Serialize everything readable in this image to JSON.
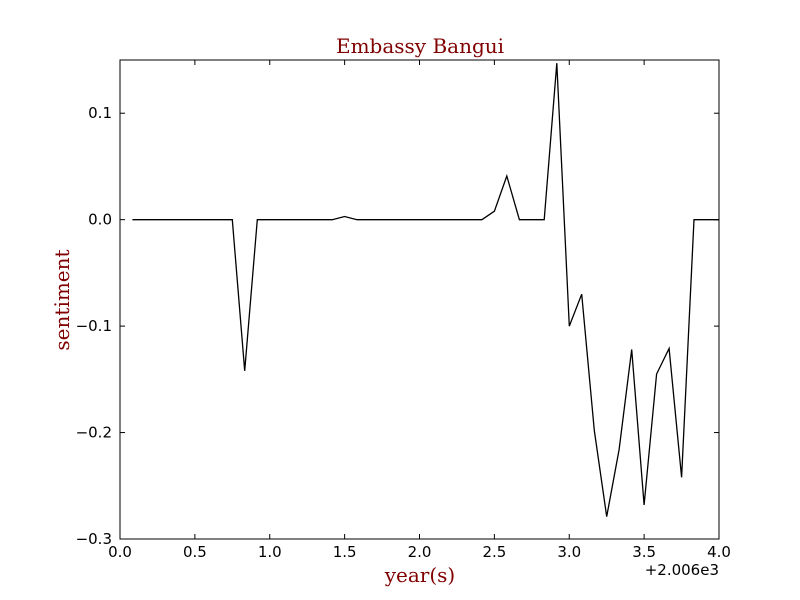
{
  "chart_data": {
    "type": "line",
    "title": "Embassy Bangui",
    "xlabel": "year(s)",
    "ylabel": "sentiment",
    "x_offset_label": "+2.006e3",
    "xlim": [
      0.0,
      4.0
    ],
    "ylim": [
      -0.3,
      0.15
    ],
    "x_ticks": [
      0.0,
      0.5,
      1.0,
      1.5,
      2.0,
      2.5,
      3.0,
      3.5,
      4.0
    ],
    "x_tick_labels": [
      "0.0",
      "0.5",
      "1.0",
      "1.5",
      "2.0",
      "2.5",
      "3.0",
      "3.5",
      "4.0"
    ],
    "y_ticks": [
      -0.3,
      -0.2,
      -0.1,
      0.0,
      0.1
    ],
    "y_tick_labels": [
      "−0.3",
      "−0.2",
      "−0.1",
      "0.0",
      "0.1"
    ],
    "grid": false,
    "colors": {
      "line": "#000000",
      "text": "#800000"
    },
    "series": [
      {
        "x": [
          0.083,
          0.167,
          0.25,
          0.333,
          0.417,
          0.5,
          0.583,
          0.667,
          0.75,
          0.833,
          0.917,
          1.0,
          1.083,
          1.167,
          1.25,
          1.333,
          1.417,
          1.5,
          1.583,
          1.667,
          1.75,
          1.833,
          1.917,
          2.0,
          2.083,
          2.167,
          2.25,
          2.333,
          2.417,
          2.5,
          2.583,
          2.667,
          2.75,
          2.833,
          2.917,
          3.0,
          3.083,
          3.167,
          3.25,
          3.333,
          3.417,
          3.5,
          3.583,
          3.667,
          3.75,
          3.833,
          3.917,
          4.0
        ],
        "y": [
          0.0,
          0.0,
          0.0,
          0.0,
          0.0,
          0.0,
          0.0,
          0.0,
          0.0,
          -0.142,
          0.0,
          0.0,
          0.0,
          0.0,
          0.0,
          0.0,
          0.0,
          0.003,
          0.0,
          0.0,
          0.0,
          0.0,
          0.0,
          0.0,
          0.0,
          0.0,
          0.0,
          0.0,
          0.0,
          0.008,
          0.041,
          0.0,
          0.0,
          0.0,
          0.147,
          -0.1,
          -0.07,
          -0.198,
          -0.279,
          -0.216,
          -0.122,
          -0.268,
          -0.145,
          -0.121,
          -0.242,
          0.0,
          0.0,
          0.0
        ]
      }
    ]
  }
}
